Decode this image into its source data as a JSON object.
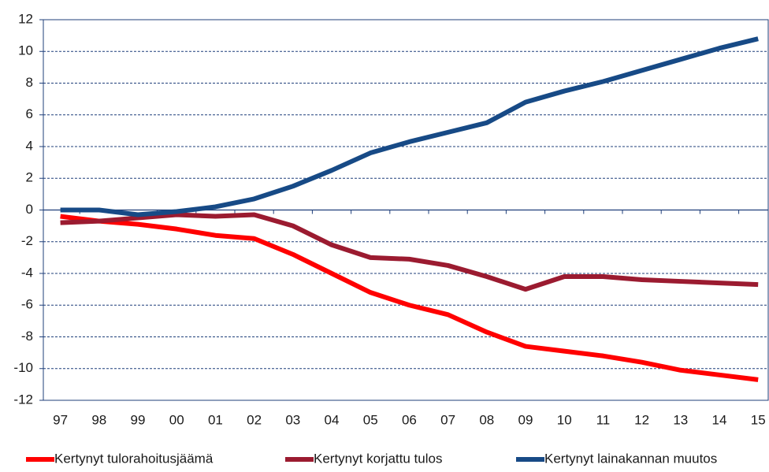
{
  "chart_data": {
    "type": "line",
    "categories": [
      "97",
      "98",
      "99",
      "00",
      "01",
      "02",
      "03",
      "04",
      "05",
      "06",
      "07",
      "08",
      "09",
      "10",
      "11",
      "12",
      "13",
      "14",
      "15"
    ],
    "series": [
      {
        "name": "Kertynyt tulorahoitusjäämä",
        "color": "#ff0000",
        "values": [
          -0.4,
          -0.7,
          -0.9,
          -1.2,
          -1.6,
          -1.8,
          -2.8,
          -4.0,
          -5.2,
          -6.0,
          -6.6,
          -7.7,
          -8.6,
          -8.9,
          -9.2,
          -9.6,
          -10.1,
          -10.4,
          -10.7
        ]
      },
      {
        "name": "Kertynyt korjattu tulos",
        "color": "#9b1b30",
        "values": [
          -0.8,
          -0.7,
          -0.5,
          -0.3,
          -0.4,
          -0.3,
          -1.0,
          -2.2,
          -3.0,
          -3.1,
          -3.5,
          -4.2,
          -5.0,
          -4.2,
          -4.2,
          -4.4,
          -4.5,
          -4.6,
          -4.7
        ]
      },
      {
        "name": "Kertynyt lainakannan muutos",
        "color": "#174a86",
        "values": [
          0,
          0,
          -0.3,
          -0.1,
          0.2,
          0.7,
          1.5,
          2.5,
          3.6,
          4.3,
          4.9,
          5.5,
          6.8,
          7.5,
          8.1,
          8.8,
          9.5,
          10.2,
          10.8
        ]
      }
    ],
    "ylim": [
      -12,
      12
    ],
    "yticks": [
      -12,
      -10,
      -8,
      -6,
      -4,
      -2,
      0,
      2,
      4,
      6,
      8,
      10,
      12
    ],
    "grid": true
  }
}
